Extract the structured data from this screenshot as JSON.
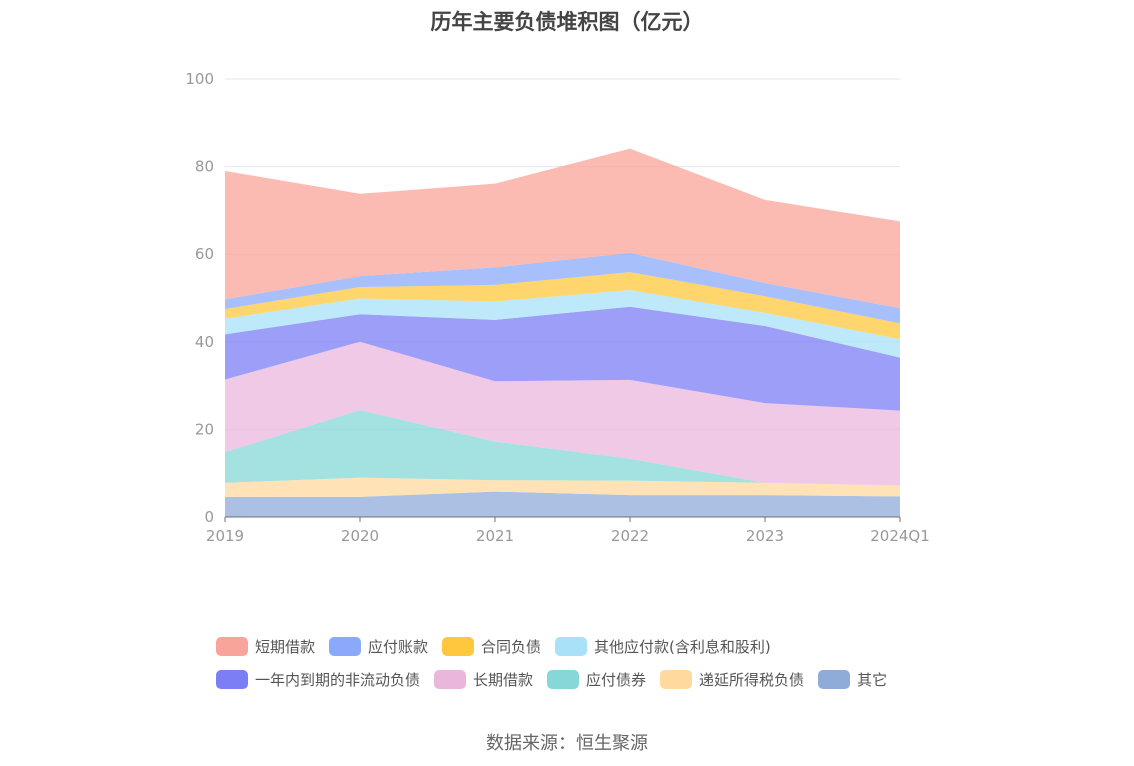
{
  "chart_data": {
    "type": "area",
    "stacked": true,
    "title": "历年主要负债堆积图（亿元）",
    "source": "数据来源：恒生聚源",
    "x": [
      "2019",
      "2020",
      "2021",
      "2022",
      "2023",
      "2024Q1"
    ],
    "ylim": [
      0,
      100
    ],
    "yticks": [
      0,
      20,
      40,
      60,
      80,
      100
    ],
    "grid": true,
    "legend_position": "bottom",
    "series": [
      {
        "name": "其它",
        "color": "#8fabd8",
        "values": [
          4.6,
          4.6,
          5.8,
          5.0,
          5.0,
          4.7
        ]
      },
      {
        "name": "递延所得税负债",
        "color": "#ffd99e",
        "values": [
          3.2,
          4.4,
          2.6,
          3.3,
          2.8,
          2.5
        ]
      },
      {
        "name": "应付债券",
        "color": "#86d8d8",
        "values": [
          7.0,
          15.4,
          8.8,
          5.0,
          0.0,
          0.0
        ]
      },
      {
        "name": "长期借款",
        "color": "#e9b7dc",
        "values": [
          16.6,
          15.6,
          13.8,
          18.0,
          18.2,
          17.1
        ]
      },
      {
        "name": "一年内到期的非流动负债",
        "color": "#7b7ef5",
        "values": [
          10.3,
          6.3,
          14.0,
          16.7,
          17.6,
          12.1
        ]
      },
      {
        "name": "其他应付款(含利息和股利)",
        "color": "#a8e1f8",
        "values": [
          3.6,
          3.6,
          4.2,
          3.8,
          3.0,
          4.2
        ]
      },
      {
        "name": "合同负债",
        "color": "#ffc73d",
        "values": [
          2.2,
          2.6,
          3.8,
          4.1,
          3.8,
          3.6
        ]
      },
      {
        "name": "应付账款",
        "color": "#8aa9fa",
        "values": [
          2.2,
          2.5,
          4.0,
          4.4,
          3.0,
          3.5
        ]
      },
      {
        "name": "短期借款",
        "color": "#f9a49a",
        "values": [
          29.3,
          18.8,
          19.1,
          23.8,
          19.0,
          19.8
        ]
      }
    ]
  },
  "legend": {
    "row1": [
      {
        "label": "短期借款",
        "color": "#f9a49a"
      },
      {
        "label": "应付账款",
        "color": "#8aa9fa"
      },
      {
        "label": "合同负债",
        "color": "#ffc73d"
      },
      {
        "label": "其他应付款(含利息和股利)",
        "color": "#a8e1f8"
      }
    ],
    "row2": [
      {
        "label": "一年内到期的非流动负债",
        "color": "#7b7ef5"
      },
      {
        "label": "长期借款",
        "color": "#e9b7dc"
      },
      {
        "label": "应付债券",
        "color": "#86d8d8"
      },
      {
        "label": "递延所得税负债",
        "color": "#ffd99e"
      },
      {
        "label": "其它",
        "color": "#8fabd8"
      }
    ]
  }
}
